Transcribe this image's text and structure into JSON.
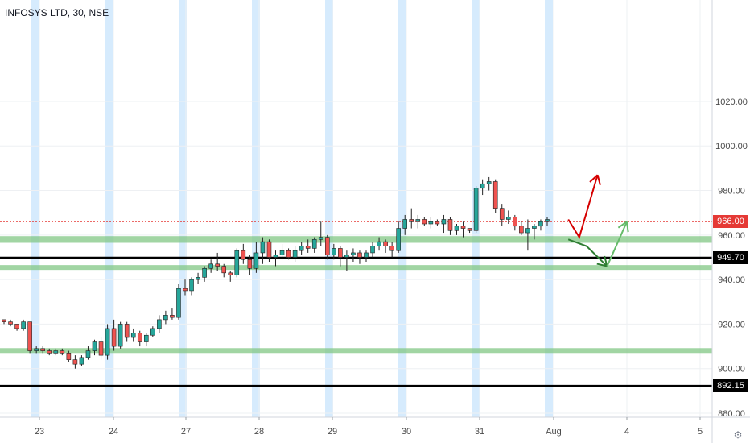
{
  "header": {
    "title": "INFOSYS LTD, 30, NSE"
  },
  "colors": {
    "up": "#26a69a",
    "down": "#ef5350",
    "session_band": "#bbdefb",
    "zone": "#81c784",
    "support_line": "#000000",
    "current_price_line": "#e53935",
    "arrow_red": "#d50000",
    "arrow_green_dark": "#2e7d32",
    "arrow_green_light": "#66bb6a",
    "axis_text": "#4a4a4a",
    "grid": "#eef0f3"
  },
  "price_labels": {
    "current": "966.00",
    "support_upper": "949.70",
    "support_lower": "892.15"
  },
  "icons": {
    "corner": "settings-icon"
  },
  "chart_data": {
    "type": "candlestick",
    "title": "INFOSYS LTD, 30, NSE",
    "interval": "30",
    "y_ticks": [
      "1020.00",
      "1000.00",
      "980.00",
      "960.00",
      "940.00",
      "920.00",
      "900.00",
      "880.00"
    ],
    "ylim": [
      863,
      1033
    ],
    "x_ticks": [
      "23",
      "24",
      "27",
      "28",
      "29",
      "30",
      "31",
      "Aug",
      "4",
      "5"
    ],
    "grid": true,
    "horizontal_lines": [
      {
        "price": 966.0,
        "style": "dotted",
        "color": "#e53935",
        "label": "966.00"
      },
      {
        "price": 949.7,
        "style": "solid",
        "color": "#000000",
        "label": "949.70"
      },
      {
        "price": 892.15,
        "style": "solid",
        "color": "#000000",
        "label": "892.15"
      }
    ],
    "zones": [
      {
        "low": 956.5,
        "high": 959.5
      },
      {
        "low": 944.5,
        "high": 946.5
      },
      {
        "low": 907.2,
        "high": 909.2
      }
    ],
    "arrows": [
      {
        "color": "red",
        "path": [
          [
            7.2,
            967
          ],
          [
            7.35,
            959
          ],
          [
            7.6,
            987
          ]
        ]
      },
      {
        "color": "dark-green",
        "path": [
          [
            7.2,
            958
          ],
          [
            7.45,
            955
          ],
          [
            7.73,
            946
          ]
        ]
      },
      {
        "color": "light-green",
        "path": [
          [
            7.73,
            946
          ],
          [
            7.88,
            957
          ],
          [
            8.0,
            966
          ]
        ]
      }
    ],
    "candles": [
      [
        922,
        922,
        920,
        921
      ],
      [
        921,
        922,
        919,
        920
      ],
      [
        920,
        920,
        917,
        918
      ],
      [
        918,
        922,
        917,
        921
      ],
      [
        921,
        921,
        907,
        908
      ],
      [
        908,
        910,
        907,
        909
      ],
      [
        909,
        910,
        907,
        908
      ],
      [
        908,
        909,
        906,
        907
      ],
      [
        907,
        909,
        906,
        908
      ],
      [
        908,
        909,
        906,
        907
      ],
      [
        907,
        908,
        903,
        904
      ],
      [
        904,
        906,
        900,
        902
      ],
      [
        902,
        906,
        901,
        905
      ],
      [
        905,
        910,
        904,
        908
      ],
      [
        908,
        913,
        906,
        912
      ],
      [
        912,
        914,
        904,
        906
      ],
      [
        906,
        920,
        904,
        918
      ],
      [
        918,
        922,
        908,
        910
      ],
      [
        910,
        921,
        909,
        920
      ],
      [
        920,
        921,
        912,
        914
      ],
      [
        914,
        918,
        912,
        916
      ],
      [
        916,
        917,
        910,
        912
      ],
      [
        912,
        916,
        910,
        915
      ],
      [
        915,
        919,
        914,
        918
      ],
      [
        918,
        924,
        916,
        922
      ],
      [
        922,
        926,
        920,
        924
      ],
      [
        924,
        927,
        922,
        923
      ],
      [
        923,
        938,
        922,
        936
      ],
      [
        936,
        940,
        933,
        935
      ],
      [
        935,
        941,
        933,
        940
      ],
      [
        940,
        943,
        938,
        941
      ],
      [
        941,
        946,
        939,
        945
      ],
      [
        945,
        949,
        943,
        947
      ],
      [
        947,
        952,
        944,
        946
      ],
      [
        946,
        947,
        941,
        943
      ],
      [
        943,
        944,
        939,
        942
      ],
      [
        942,
        954,
        941,
        953
      ],
      [
        953,
        956,
        947,
        949
      ],
      [
        949,
        951,
        942,
        945
      ],
      [
        945,
        957,
        943,
        952
      ],
      [
        952,
        959,
        947,
        957
      ],
      [
        957,
        958,
        948,
        950
      ],
      [
        950,
        953,
        946,
        951
      ],
      [
        951,
        956,
        949,
        953
      ],
      [
        953,
        954,
        949,
        950
      ],
      [
        950,
        955,
        948,
        953
      ],
      [
        953,
        957,
        951,
        955
      ],
      [
        955,
        958,
        952,
        954
      ],
      [
        954,
        959,
        952,
        958
      ],
      [
        958,
        966,
        955,
        959
      ],
      [
        959,
        960,
        949,
        951
      ],
      [
        951,
        956,
        949,
        954
      ],
      [
        954,
        955,
        946,
        950
      ],
      [
        950,
        953,
        944,
        951
      ],
      [
        951,
        954,
        948,
        952
      ],
      [
        952,
        953,
        947,
        950
      ],
      [
        950,
        953,
        948,
        952
      ],
      [
        952,
        957,
        950,
        955
      ],
      [
        955,
        959,
        953,
        957
      ],
      [
        957,
        958,
        952,
        955
      ],
      [
        955,
        957,
        950,
        953
      ],
      [
        953,
        966,
        952,
        963
      ],
      [
        963,
        969,
        960,
        967
      ],
      [
        967,
        972,
        963,
        966
      ],
      [
        966,
        969,
        963,
        967
      ],
      [
        967,
        968,
        964,
        965
      ],
      [
        965,
        968,
        963,
        966
      ],
      [
        966,
        967,
        964,
        965
      ],
      [
        965,
        969,
        961,
        967
      ],
      [
        967,
        968,
        960,
        962
      ],
      [
        962,
        965,
        960,
        964
      ],
      [
        964,
        966,
        959,
        963
      ],
      [
        963,
        963,
        961,
        962
      ],
      [
        962,
        982,
        961,
        981
      ],
      [
        981,
        985,
        978,
        983
      ],
      [
        983,
        986,
        980,
        984
      ],
      [
        984,
        985,
        970,
        972
      ],
      [
        972,
        974,
        964,
        967
      ],
      [
        967,
        971,
        965,
        968
      ],
      [
        968,
        969,
        962,
        964
      ],
      [
        964,
        966,
        960,
        961
      ],
      [
        961,
        967,
        953,
        963
      ],
      [
        963,
        965,
        958,
        964
      ],
      [
        964,
        967,
        962,
        966
      ],
      [
        966,
        968,
        964,
        967
      ]
    ]
  }
}
